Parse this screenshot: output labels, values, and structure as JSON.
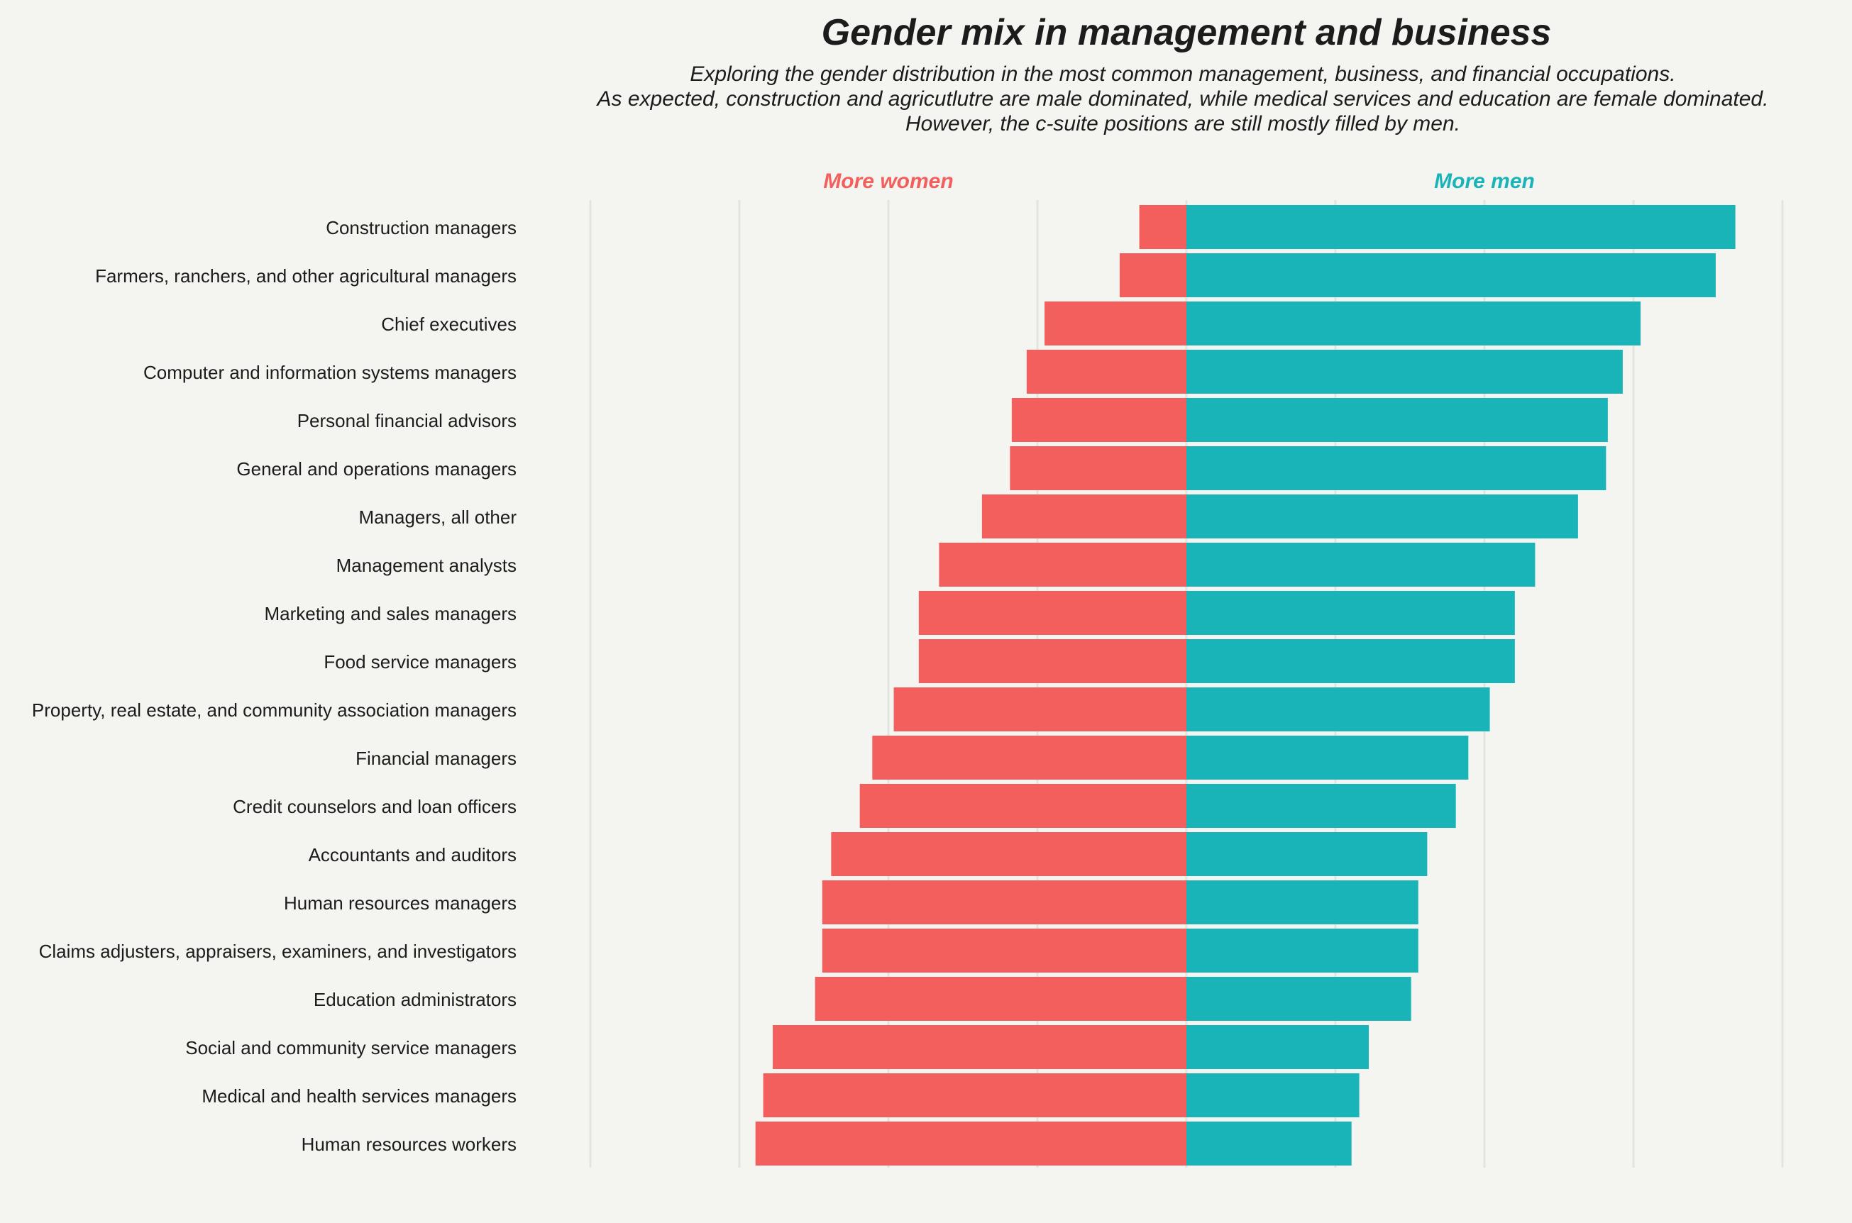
{
  "chart_data": {
    "type": "bar",
    "orientation": "horizontal-diverging",
    "title": "Gender mix in management and business",
    "subtitle_lines": [
      "Exploring the gender distribution in the most common management, business, and financial occupations.",
      "As expected, construction and agricutlutre are male dominated, while medical services and education are female dominated.",
      "However, the c-suite positions are still mostly filled by men."
    ],
    "side_labels": {
      "left": "More women",
      "right": "More men"
    },
    "colors": {
      "women": "#f35f5c",
      "men": "#19b4b8",
      "background": "#f4f4f0",
      "grid": "#e4e4df"
    },
    "xlim": [
      -100,
      100
    ],
    "grid": true,
    "categories": [
      "Construction managers",
      "Farmers, ranchers, and other agricultural managers",
      "Chief executives",
      "Computer and information systems managers",
      "Personal financial advisors",
      "General and operations managers",
      "Managers, all other",
      "Management analysts",
      "Marketing and sales managers",
      "Food service managers",
      "Property, real estate, and community association managers",
      "Financial managers",
      "Credit counselors and loan officers",
      "Accountants and auditors",
      "Human resources managers",
      "Claims adjusters, appraisers, examiners, and investigators",
      "Education administrators",
      "Social and community service managers",
      "Medical and health services managers",
      "Human resources workers"
    ],
    "series": [
      {
        "name": "More women",
        "values": [
          7.9,
          11.2,
          23.8,
          26.8,
          29.3,
          29.6,
          34.3,
          41.5,
          44.9,
          44.9,
          49.1,
          52.7,
          54.8,
          59.6,
          61.1,
          61.1,
          62.3,
          69.4,
          71.0,
          72.3
        ]
      },
      {
        "name": "More men",
        "values": [
          92.1,
          88.8,
          76.2,
          73.2,
          70.7,
          70.4,
          65.7,
          58.5,
          55.1,
          55.1,
          50.9,
          47.3,
          45.2,
          40.4,
          38.9,
          38.9,
          37.7,
          30.6,
          29.0,
          27.7
        ]
      }
    ]
  }
}
